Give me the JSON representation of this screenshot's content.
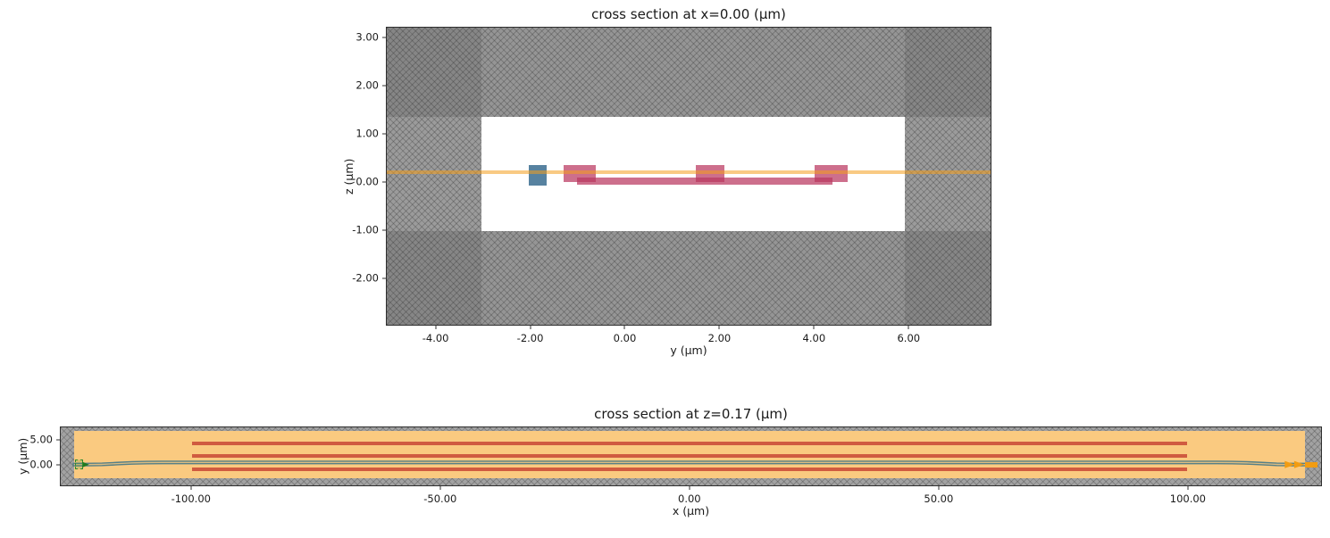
{
  "chart_data": [
    {
      "type": "area",
      "title": "cross section at x=0.00 (μm)",
      "xlabel": "y (μm)",
      "ylabel": "z (μm)",
      "xlim": [
        -5.05,
        7.75
      ],
      "ylim": [
        -2.98,
        3.22
      ],
      "grid": false,
      "legend": "none",
      "xticks": [
        {
          "v": -4,
          "label": "-4.00"
        },
        {
          "v": -2,
          "label": "-2.00"
        },
        {
          "v": 0,
          "label": "0.00"
        },
        {
          "v": 2,
          "label": "2.00"
        },
        {
          "v": 4,
          "label": "4.00"
        },
        {
          "v": 6,
          "label": "6.00"
        }
      ],
      "yticks": [
        {
          "v": 3,
          "label": "3.00"
        },
        {
          "v": 2,
          "label": "2.00"
        },
        {
          "v": 1,
          "label": "1.00"
        },
        {
          "v": 0,
          "label": "0.00"
        },
        {
          "v": -1,
          "label": "-1.00"
        },
        {
          "v": -2,
          "label": "-2.00"
        }
      ],
      "regions": [
        {
          "name": "cladding-hatched-background",
          "x": [
            -5.05,
            7.75
          ],
          "y": [
            -2.98,
            3.22
          ],
          "color": "#acacac",
          "hatch": true
        },
        {
          "name": "top-dark-band",
          "x": [
            -5.05,
            7.75
          ],
          "y": [
            1.35,
            3.22
          ],
          "color": "rgba(30,30,30,0.16)"
        },
        {
          "name": "bottom-dark-band",
          "x": [
            -5.05,
            7.75
          ],
          "y": [
            -2.98,
            -1.03
          ],
          "color": "rgba(30,30,30,0.16)"
        },
        {
          "name": "pml-left-column",
          "x": [
            -5.05,
            -3.05
          ],
          "y": [
            -2.98,
            3.22
          ],
          "color": "rgba(30,30,30,0.12)"
        },
        {
          "name": "pml-right-column",
          "x": [
            5.93,
            7.75
          ],
          "y": [
            -2.98,
            3.22
          ],
          "color": "rgba(30,30,30,0.12)"
        },
        {
          "name": "simulation-window",
          "x": [
            -3.05,
            5.93
          ],
          "y": [
            -1.03,
            1.35
          ],
          "color": "#ffffff"
        },
        {
          "name": "doped-region-left",
          "x": [
            -1.3,
            -0.62
          ],
          "y": [
            0.0,
            0.35
          ],
          "color": "rgba(186,55,95,0.72)"
        },
        {
          "name": "doped-region-mid",
          "x": [
            1.5,
            2.1
          ],
          "y": [
            0.0,
            0.35
          ],
          "color": "rgba(186,55,95,0.72)"
        },
        {
          "name": "doped-region-right",
          "x": [
            4.02,
            4.73
          ],
          "y": [
            0.0,
            0.35
          ],
          "color": "rgba(186,55,95,0.72)"
        },
        {
          "name": "slab-layer",
          "x": [
            -1.02,
            4.39
          ],
          "y": [
            -0.05,
            0.1
          ],
          "color": "rgba(186,55,95,0.72)"
        },
        {
          "name": "waveguide-core",
          "x": [
            -2.03,
            -1.66
          ],
          "y": [
            -0.07,
            0.35
          ],
          "color": "rgba(58,108,143,0.85)"
        },
        {
          "name": "heater-layer-strip",
          "x": [
            -5.05,
            7.75
          ],
          "y": [
            0.16,
            0.235
          ],
          "color": "rgba(244,158,30,0.55)"
        }
      ]
    },
    {
      "type": "area",
      "title": "cross section at z=0.17 (μm)",
      "xlabel": "x (μm)",
      "ylabel": "y (μm)",
      "xlim": [
        -126.3,
        126.9
      ],
      "ylim": [
        -4.29,
        7.68
      ],
      "grid": false,
      "legend": "none",
      "xticks": [
        {
          "v": -100,
          "label": "-100.00"
        },
        {
          "v": -50,
          "label": "-50.00"
        },
        {
          "v": 0,
          "label": "0.00"
        },
        {
          "v": 50,
          "label": "50.00"
        },
        {
          "v": 100,
          "label": "100.00"
        }
      ],
      "yticks": [
        {
          "v": 5,
          "label": "5.00"
        },
        {
          "v": 0,
          "label": "0.00"
        }
      ],
      "regions": [
        {
          "name": "cladding-hatched-background",
          "x": [
            -126.3,
            126.9
          ],
          "y": [
            -4.29,
            7.68
          ],
          "color": "#a2a2a2",
          "hatch": true
        },
        {
          "name": "simulation-window",
          "x": [
            -123.6,
            123.6
          ],
          "y": [
            -2.9,
            7.0
          ],
          "color": "#ffffff"
        },
        {
          "name": "heater-layer",
          "x": [
            -123.6,
            123.6
          ],
          "y": [
            -2.9,
            7.0
          ],
          "color": "rgba(247,166,44,0.6)"
        },
        {
          "name": "doped-strip-top",
          "x": [
            -100,
            100
          ],
          "y": [
            4.02,
            4.73
          ],
          "color": "rgba(198,62,48,0.8)"
        },
        {
          "name": "doped-strip-mid",
          "x": [
            -100,
            100
          ],
          "y": [
            1.5,
            2.1
          ],
          "color": "rgba(198,62,48,0.8)"
        },
        {
          "name": "doped-strip-bottom",
          "x": [
            -100,
            100
          ],
          "y": [
            -1.3,
            -0.62
          ],
          "color": "rgba(198,62,48,0.8)"
        }
      ],
      "paths": [
        {
          "name": "waveguide-outline",
          "closed": true,
          "stroke": "#567f86",
          "stroke_width": 1.4,
          "fill": "rgba(90,135,140,0.18)",
          "points": [
            [
              -123.8,
              0.25
            ],
            [
              -121,
              0.25
            ],
            [
              -118,
              0.3
            ],
            [
              -115,
              0.45
            ],
            [
              -112,
              0.6
            ],
            [
              -109,
              0.67
            ],
            [
              -106,
              0.69
            ],
            [
              106,
              0.69
            ],
            [
              109,
              0.67
            ],
            [
              112,
              0.6
            ],
            [
              115,
              0.45
            ],
            [
              118,
              0.3
            ],
            [
              121,
              0.25
            ],
            [
              123.8,
              0.25
            ],
            [
              123.8,
              -0.25
            ],
            [
              121,
              -0.25
            ],
            [
              118,
              -0.2
            ],
            [
              115,
              -0.05
            ],
            [
              112,
              0.1
            ],
            [
              109,
              0.17
            ],
            [
              106,
              0.19
            ],
            [
              -106,
              0.19
            ],
            [
              -109,
              0.17
            ],
            [
              -112,
              0.1
            ],
            [
              -115,
              -0.05
            ],
            [
              -118,
              -0.2
            ],
            [
              -121,
              -0.25
            ],
            [
              -123.8,
              -0.25
            ]
          ]
        }
      ],
      "markers": [
        {
          "name": "mode-source-box",
          "kind": "dashed-rect",
          "x": [
            -123.5,
            -121.9
          ],
          "y": [
            -1.05,
            1.05
          ],
          "color": "#2e8b2e",
          "bg": "rgba(46,139,46,0.18)"
        },
        {
          "name": "mode-source-arrow",
          "kind": "triangle-right",
          "tip": [
            -120.6,
            0
          ],
          "base_x": -122.0,
          "half_h": 0.6,
          "color": "#1f7a1f"
        },
        {
          "name": "mode-monitor-arrow-1",
          "kind": "triangle-right",
          "tip": [
            121.7,
            0
          ],
          "base_x": 119.6,
          "half_h": 0.75,
          "color": "#f29c11"
        },
        {
          "name": "mode-monitor-arrow-2",
          "kind": "triangle-right",
          "tip": [
            123.6,
            0
          ],
          "base_x": 121.5,
          "half_h": 0.75,
          "color": "#f29c11"
        },
        {
          "name": "mode-monitor-bar",
          "kind": "rect",
          "x": [
            123.6,
            126.2
          ],
          "y": [
            -0.55,
            0.55
          ],
          "color": "#f29c11"
        }
      ]
    }
  ]
}
